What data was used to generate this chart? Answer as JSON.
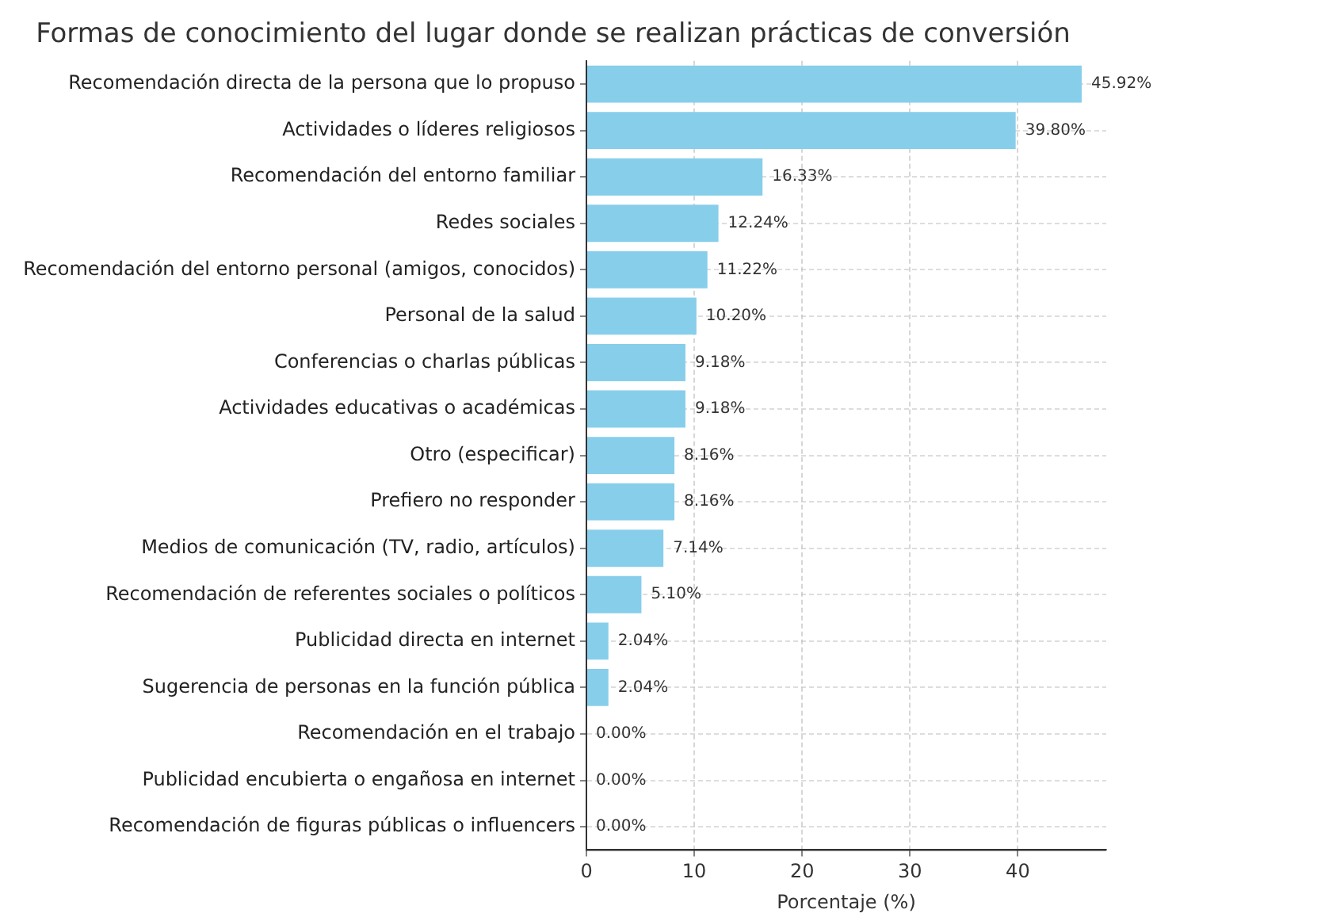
{
  "chart_data": {
    "type": "bar",
    "orientation": "horizontal",
    "title": "Formas de conocimiento del lugar donde se realizan prácticas de conversión",
    "xlabel": "Porcentaje (%)",
    "categories": [
      "Recomendación directa de la persona que lo propuso",
      "Actividades o líderes religiosos",
      "Recomendación del entorno familiar",
      "Redes sociales",
      "Recomendación del entorno personal (amigos, conocidos)",
      "Personal de la salud",
      "Conferencias o charlas públicas",
      "Actividades educativas o académicas",
      "Otro (especificar)",
      "Prefiero no responder",
      "Medios de comunicación (TV, radio, artículos)",
      "Recomendación de referentes sociales o políticos",
      "Publicidad directa en internet",
      "Sugerencia de personas en la función pública",
      "Recomendación en el trabajo",
      "Publicidad encubierta o engañosa en internet",
      "Recomendación de figuras públicas o influencers"
    ],
    "values": [
      45.92,
      39.8,
      16.33,
      12.24,
      11.22,
      10.2,
      9.18,
      9.18,
      8.16,
      8.16,
      7.14,
      5.1,
      2.04,
      2.04,
      0,
      0,
      0
    ],
    "value_labels": [
      "45.92%",
      "39.80%",
      "16.33%",
      "12.24%",
      "11.22%",
      "10.20%",
      "9.18%",
      "9.18%",
      "8.16%",
      "8.16%",
      "7.14%",
      "5.10%",
      "2.04%",
      "2.04%",
      "0.00%",
      "0.00%",
      "0.00%"
    ],
    "color": "#87ceeb",
    "xlim": [
      0,
      48.2
    ],
    "xticks": [
      0,
      10,
      20,
      30,
      40
    ],
    "grid": true
  }
}
